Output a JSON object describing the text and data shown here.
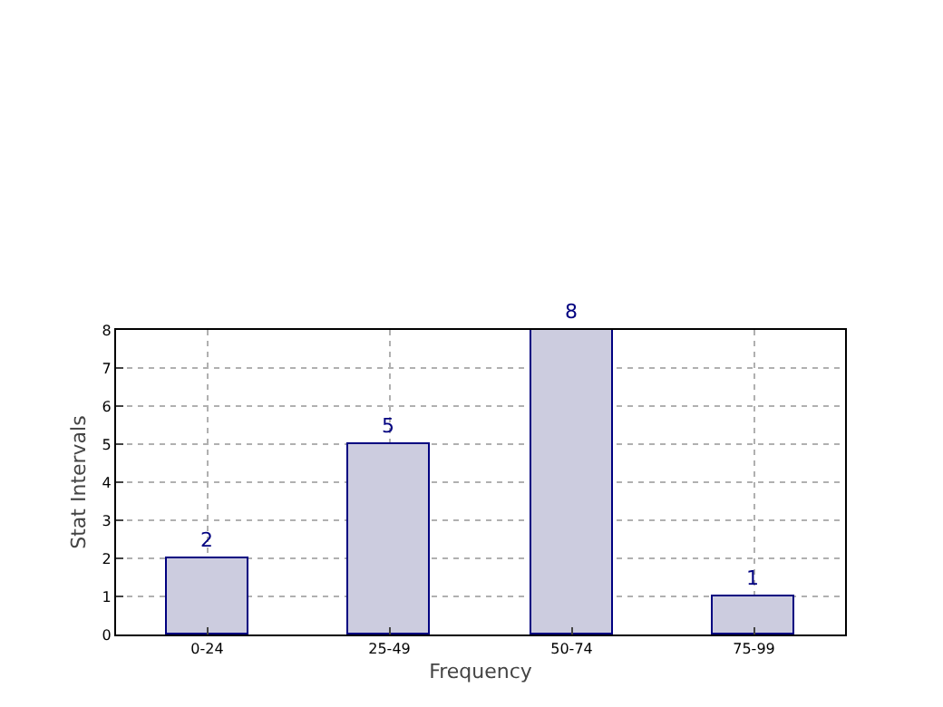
{
  "chart_data": {
    "type": "bar",
    "xlabel": "Frequency",
    "ylabel": "Stat Intervals",
    "categories": [
      "0-24",
      "25-49",
      "50-74",
      "75-99"
    ],
    "values": [
      2,
      5,
      8,
      1
    ],
    "color": "#ccccdf",
    "ylim": [
      0,
      8
    ],
    "yticks": [
      0,
      1,
      2,
      3,
      4,
      5,
      6,
      7,
      8
    ],
    "grid": true,
    "data_labels": true,
    "legend": false
  }
}
